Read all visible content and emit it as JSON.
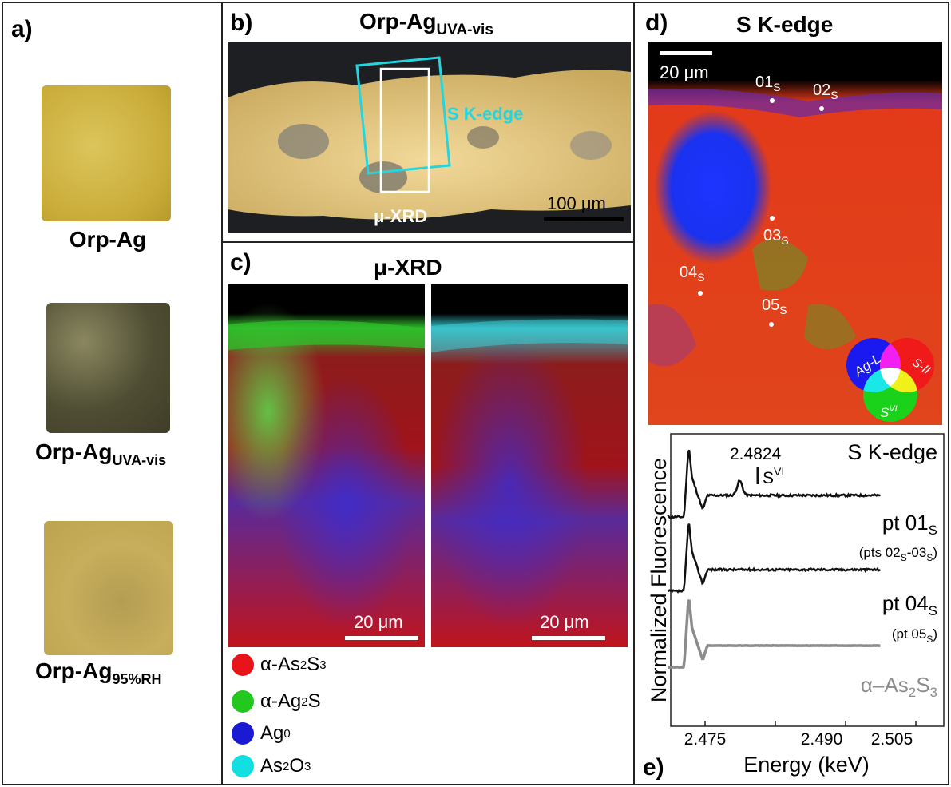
{
  "panels": {
    "a": {
      "label": "a)",
      "samples": [
        {
          "name": "Orp-Ag",
          "sub": ""
        },
        {
          "name": "Orp-Ag",
          "sub": "UVA-vis"
        },
        {
          "name": "Orp-Ag",
          "sub": "95%RH"
        }
      ]
    },
    "b": {
      "label": "b)",
      "title": "Orp-Ag",
      "title_sub": "UVA-vis",
      "box1": "S K-edge",
      "box2": "μ-XRD",
      "scale": "100 μm"
    },
    "c": {
      "label": "c)",
      "title": "μ-XRD",
      "scale_left": "20 μm",
      "scale_right": "20 μm",
      "legend": [
        {
          "pre": "α-As",
          "s1": "2",
          "mid": "S",
          "s2": "3",
          "sup": "",
          "color": "#e8141a"
        },
        {
          "pre": "α-Ag",
          "s1": "2",
          "mid": "S",
          "s2": "",
          "sup": "",
          "color": "#22c81e"
        },
        {
          "pre": "Ag",
          "s1": "",
          "mid": "",
          "s2": "",
          "sup": "0",
          "color": "#1a1ad2"
        },
        {
          "pre": "As",
          "s1": "2",
          "mid": "O",
          "s2": "3",
          "sup": "",
          "color": "#12e0e0"
        }
      ]
    },
    "d": {
      "label": "d)",
      "title": "S K-edge",
      "scale": "20 μm",
      "points": [
        {
          "n": "01",
          "s": "S"
        },
        {
          "n": "02",
          "s": "S"
        },
        {
          "n": "03",
          "s": "S"
        },
        {
          "n": "04",
          "s": "S"
        },
        {
          "n": "05",
          "s": "S"
        }
      ],
      "venn": {
        "ag": "Ag-L",
        "s2": "S-II",
        "s6": "S",
        "s6_sup": "VI"
      }
    },
    "e": {
      "label": "e)"
    }
  },
  "chart_data": {
    "type": "line",
    "title": "S K-edge",
    "xlabel": "Energy (keV)",
    "ylabel": "Normalized Fluorescence",
    "xticks": [
      "2.475",
      "2.490",
      "2.505"
    ],
    "annotation": {
      "value": "2.4824",
      "label": "S",
      "label_sup": "VI"
    },
    "series": [
      {
        "name": "pt 01",
        "sub": "S",
        "note": "(pts 02",
        "note_sub1": "S",
        "note_mid": "-03",
        "note_sub2": "S",
        "note_end": ")",
        "color": "#111111"
      },
      {
        "name": "pt 04",
        "sub": "S",
        "note": "(pt 05",
        "note_sub1": "S",
        "note_end": ")",
        "color": "#111111"
      },
      {
        "name": "α–As",
        "sub2": "2",
        "mid": "S",
        "sub3": "3",
        "color": "#8c8c8c"
      }
    ]
  }
}
